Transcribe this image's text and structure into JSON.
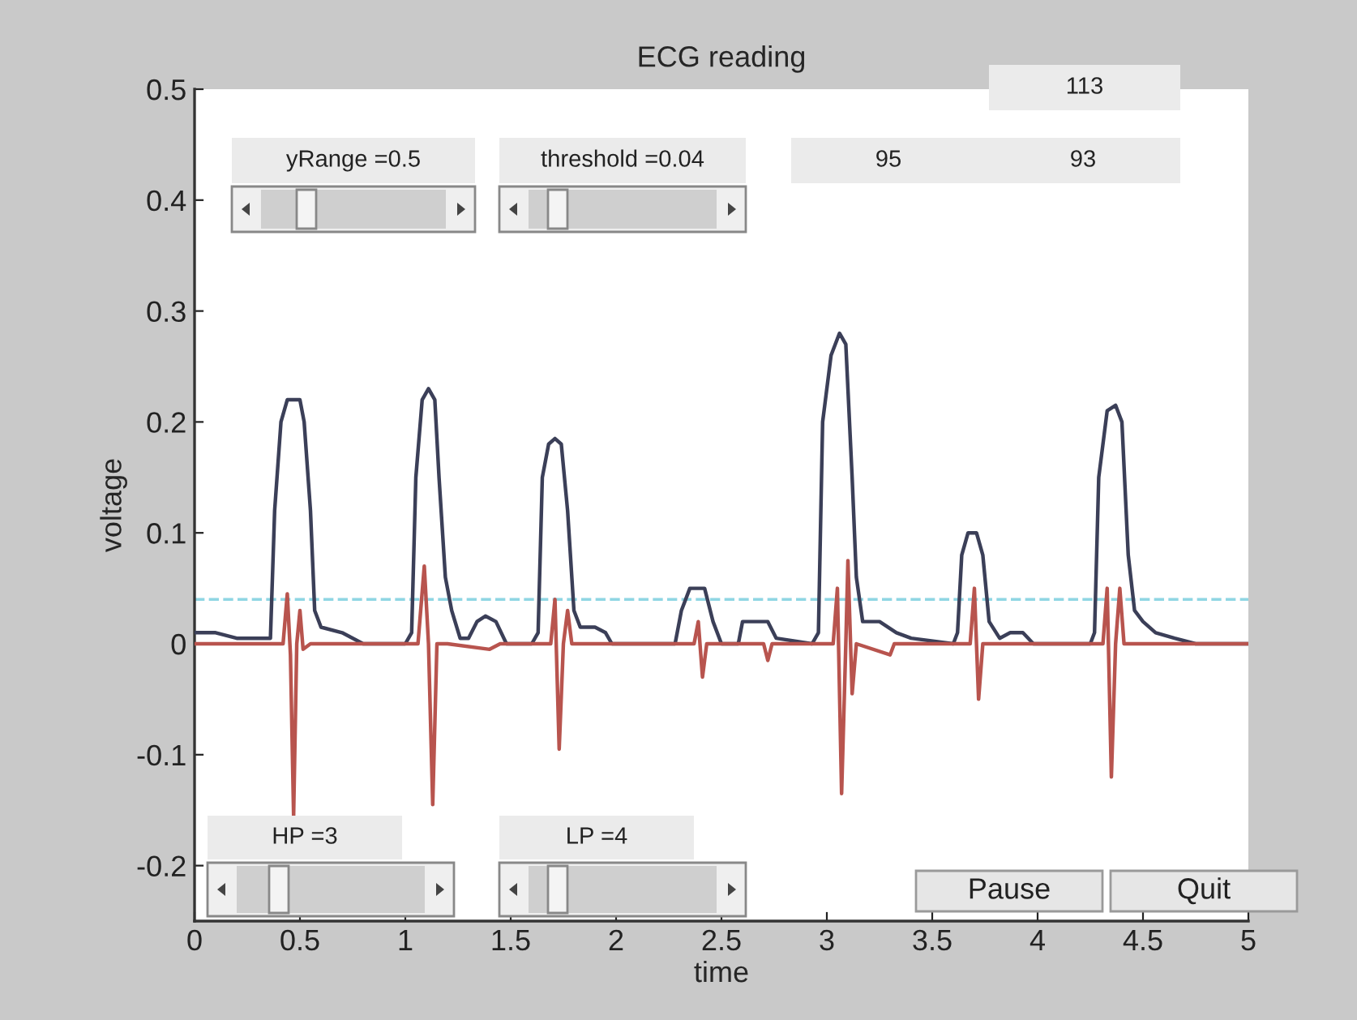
{
  "chart_data": {
    "type": "line",
    "title": "ECG reading",
    "xlabel": "time",
    "ylabel": "voltage",
    "xlim": [
      0,
      5
    ],
    "xticks": [
      0,
      0.5,
      1,
      1.5,
      2,
      2.5,
      3,
      3.5,
      4,
      4.5,
      5
    ],
    "ylim": [
      -0.25,
      0.5
    ],
    "yticks": [
      -0.2,
      -0.1,
      0,
      0.1,
      0.2,
      0.3,
      0.4,
      0.5
    ],
    "grid": false,
    "legend": false,
    "marker": "none",
    "line_style": "solid",
    "ref_lines": [
      {
        "axis": "y",
        "value": 0.04,
        "color": "#8fd6e3",
        "line_style": "dashed"
      }
    ],
    "annotations": [
      "yRange =0.5",
      "threshold =0.04",
      "95",
      "93",
      "113",
      "HP =3",
      "LP =4",
      "Pause",
      "Quit"
    ],
    "series": [
      {
        "color": "#3b3f58",
        "x": [
          0,
          0.1,
          0.2,
          0.3,
          0.36,
          0.38,
          0.41,
          0.44,
          0.5,
          0.52,
          0.55,
          0.57,
          0.6,
          0.7,
          0.8,
          1.0,
          1.03,
          1.05,
          1.08,
          1.11,
          1.14,
          1.16,
          1.19,
          1.22,
          1.26,
          1.3,
          1.34,
          1.38,
          1.43,
          1.48,
          1.6,
          1.63,
          1.65,
          1.68,
          1.71,
          1.74,
          1.77,
          1.8,
          1.83,
          1.9,
          1.95,
          1.98,
          2.28,
          2.31,
          2.35,
          2.42,
          2.46,
          2.5,
          2.58,
          2.6,
          2.72,
          2.76,
          2.93,
          2.96,
          2.98,
          3.02,
          3.06,
          3.09,
          3.12,
          3.14,
          3.17,
          3.25,
          3.33,
          3.4,
          3.6,
          3.62,
          3.64,
          3.67,
          3.71,
          3.74,
          3.77,
          3.82,
          3.87,
          3.93,
          3.98,
          4.25,
          4.27,
          4.29,
          4.33,
          4.37,
          4.4,
          4.43,
          4.46,
          4.5,
          4.56,
          4.65,
          4.75,
          5.0
        ],
        "values": [
          0.01,
          0.01,
          0.005,
          0.005,
          0.005,
          0.12,
          0.2,
          0.22,
          0.22,
          0.2,
          0.12,
          0.03,
          0.015,
          0.01,
          0.0,
          0.0,
          0.01,
          0.15,
          0.22,
          0.23,
          0.22,
          0.15,
          0.06,
          0.03,
          0.005,
          0.005,
          0.02,
          0.025,
          0.02,
          0.0,
          0.0,
          0.01,
          0.15,
          0.18,
          0.185,
          0.18,
          0.12,
          0.03,
          0.015,
          0.015,
          0.01,
          0.0,
          0.0,
          0.03,
          0.05,
          0.05,
          0.02,
          0.0,
          0.0,
          0.02,
          0.02,
          0.005,
          0.0,
          0.01,
          0.2,
          0.26,
          0.28,
          0.27,
          0.15,
          0.06,
          0.02,
          0.02,
          0.01,
          0.005,
          0.0,
          0.01,
          0.08,
          0.1,
          0.1,
          0.08,
          0.02,
          0.005,
          0.01,
          0.01,
          0.0,
          0.0,
          0.01,
          0.15,
          0.21,
          0.215,
          0.2,
          0.08,
          0.03,
          0.02,
          0.01,
          0.005,
          0.0,
          0.0
        ]
      },
      {
        "color": "#b8544e",
        "x": [
          0,
          0.42,
          0.44,
          0.455,
          0.47,
          0.485,
          0.5,
          0.515,
          0.55,
          1.06,
          1.09,
          1.11,
          1.13,
          1.15,
          1.2,
          1.4,
          1.45,
          1.69,
          1.71,
          1.73,
          1.75,
          1.77,
          1.79,
          2.37,
          2.39,
          2.41,
          2.43,
          2.7,
          2.72,
          2.74,
          3.03,
          3.05,
          3.07,
          3.09,
          3.1,
          3.12,
          3.14,
          3.3,
          3.32,
          3.68,
          3.7,
          3.72,
          3.74,
          4.31,
          4.33,
          4.35,
          4.37,
          4.39,
          4.41,
          5.0
        ],
        "values": [
          0.0,
          0.0,
          0.045,
          -0.01,
          -0.155,
          0.0,
          0.03,
          -0.005,
          0.0,
          0.0,
          0.07,
          0.0,
          -0.145,
          0.0,
          0.0,
          -0.005,
          0.0,
          0.0,
          0.04,
          -0.095,
          0.0,
          0.03,
          0.0,
          0.0,
          0.02,
          -0.03,
          0.0,
          0.0,
          -0.015,
          0.0,
          0.0,
          0.05,
          -0.135,
          0.0,
          0.075,
          -0.045,
          0.0,
          -0.01,
          0.0,
          0.0,
          0.05,
          -0.05,
          0.0,
          0.0,
          0.05,
          -0.12,
          0.0,
          0.05,
          0.0,
          0.0
        ]
      }
    ]
  }
}
